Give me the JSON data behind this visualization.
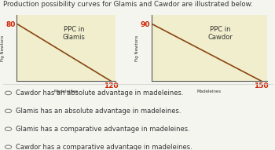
{
  "title": "Production possibility curves for Glamis and Cawdor are illustrated below:",
  "title_fontsize": 6.2,
  "bg_color": "#f5f5f0",
  "chart_bg": "#f0eecc",
  "glamis": {
    "fig_newtons": 80,
    "madeleines": 120,
    "label": "PPC in\nGlamis"
  },
  "cawdor": {
    "fig_newtons": 90,
    "madeleines": 150,
    "label": "PPC in\nCawdor"
  },
  "options": [
    "Cawdor has an absolute advantage in madeleines.",
    "Glamis has an absolute advantage in madeleines.",
    "Glamis has a comparative advantage in madeleines.",
    "Cawdor has a comparative advantage in madeleines."
  ],
  "line_color": "#8B4513",
  "axis_color": "#555555",
  "text_color": "#333333",
  "number_color": "#cc2200",
  "option_fontsize": 6.0,
  "axis_label_fontsize": 4.0,
  "tick_fontsize": 6.5,
  "label_fontsize": 6.0,
  "ylabel_fontsize": 4.0
}
